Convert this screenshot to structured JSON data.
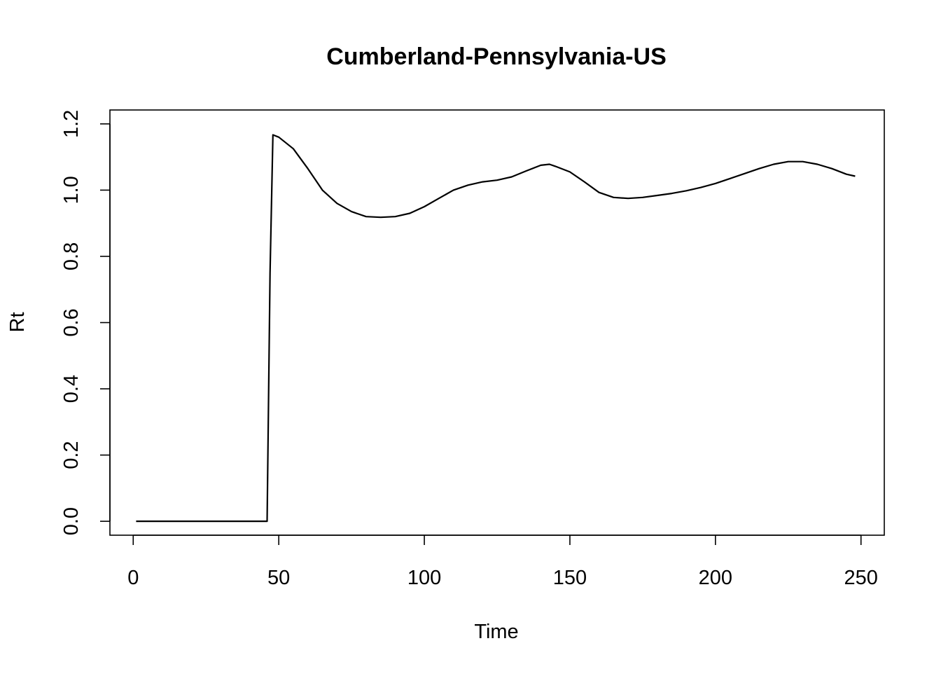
{
  "chart_data": {
    "type": "line",
    "title": "Cumberland-Pennsylvania-US",
    "xlabel": "Time",
    "ylabel": "Rt",
    "xlim": [
      -8,
      258
    ],
    "ylim": [
      -0.042,
      1.242
    ],
    "xticks": [
      0,
      50,
      100,
      150,
      200,
      250
    ],
    "yticks": [
      0.0,
      0.2,
      0.4,
      0.6,
      0.8,
      1.0,
      1.2
    ],
    "xtick_labels": [
      "0",
      "50",
      "100",
      "150",
      "200",
      "250"
    ],
    "ytick_labels": [
      "0.0",
      "0.2",
      "0.4",
      "0.6",
      "0.8",
      "1.0",
      "1.2"
    ],
    "grid": false,
    "line_color": "#000000",
    "series": [
      {
        "x": [
          1,
          46,
          47,
          48,
          50,
          55,
          60,
          65,
          70,
          75,
          80,
          85,
          90,
          95,
          100,
          105,
          110,
          115,
          120,
          125,
          130,
          135,
          140,
          143,
          145,
          150,
          155,
          160,
          165,
          170,
          175,
          180,
          185,
          190,
          195,
          200,
          205,
          210,
          215,
          220,
          225,
          230,
          235,
          240,
          245,
          248
        ],
        "y": [
          0.0,
          0.0,
          0.75,
          1.167,
          1.16,
          1.125,
          1.065,
          1.0,
          0.96,
          0.935,
          0.92,
          0.918,
          0.92,
          0.93,
          0.95,
          0.975,
          1.0,
          1.015,
          1.025,
          1.03,
          1.04,
          1.058,
          1.075,
          1.078,
          1.072,
          1.055,
          1.025,
          0.993,
          0.978,
          0.975,
          0.978,
          0.984,
          0.99,
          0.998,
          1.008,
          1.02,
          1.035,
          1.05,
          1.065,
          1.078,
          1.086,
          1.086,
          1.078,
          1.065,
          1.048,
          1.042
        ]
      }
    ]
  }
}
